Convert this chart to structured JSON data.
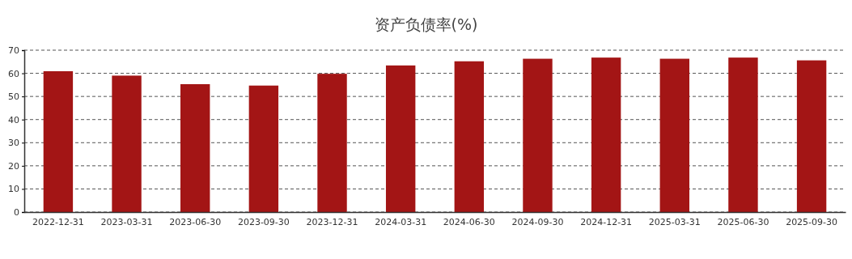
{
  "chart_data": {
    "type": "bar",
    "title": "资产负债率(%)",
    "categories": [
      "2022-12-31",
      "2023-03-31",
      "2023-06-30",
      "2023-09-30",
      "2023-12-31",
      "2024-03-31",
      "2024-06-30",
      "2024-09-30",
      "2024-12-31",
      "2025-03-31",
      "2025-06-30",
      "2025-09-30"
    ],
    "values": [
      60.9,
      59.0,
      55.3,
      54.7,
      59.8,
      63.4,
      65.2,
      66.3,
      66.8,
      66.3,
      66.8,
      65.6
    ],
    "color": "#a31515",
    "ylim": [
      0,
      70
    ],
    "yticks": [
      0,
      10,
      20,
      30,
      40,
      50,
      60,
      70
    ],
    "grid": "y"
  }
}
